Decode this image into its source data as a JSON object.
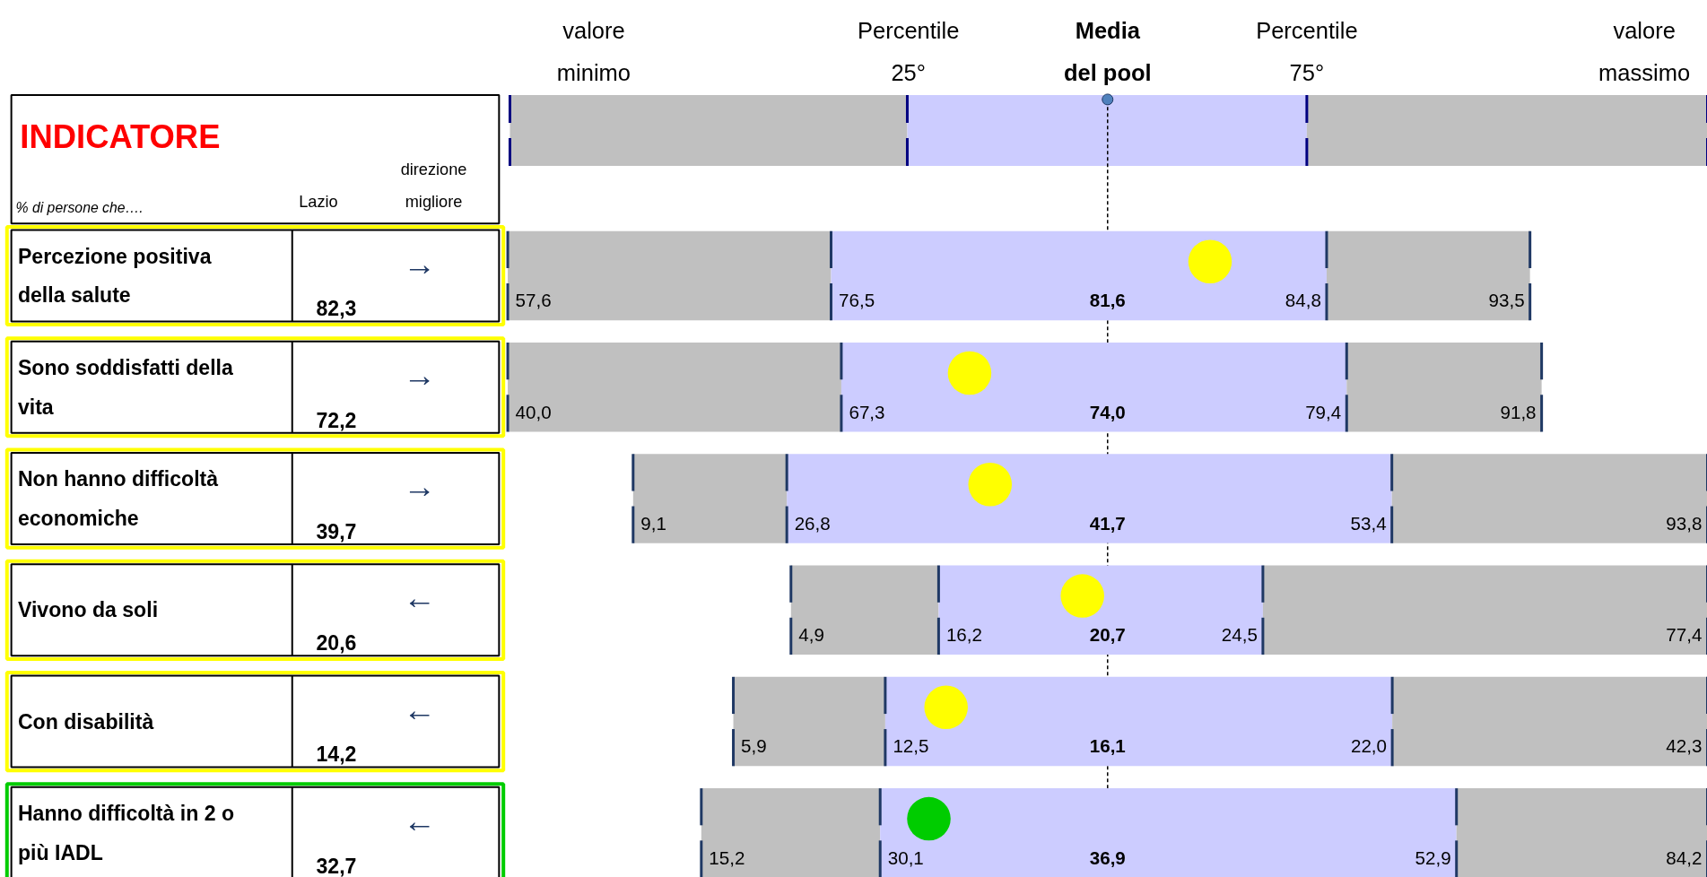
{
  "chart_data": {
    "type": "other",
    "title": "INDICATORE",
    "subtitle": "% di persone che….",
    "categories": [
      "Percezione positiva della salute",
      "Sono soddisfatti della vita",
      "Non hanno difficoltà economiche",
      "Vivono da soli",
      "Con disabilità",
      "Hanno difficoltà in 2 o più IADL"
    ],
    "series": [
      {
        "values": [
          57.6,
          40.0,
          9.1,
          4.9,
          5.9,
          15.2
        ],
        "value_labels": [
          "57,6",
          "40,0",
          "9,1",
          "4,9",
          "5,9",
          "15,2"
        ]
      },
      {
        "values": [
          76.5,
          67.3,
          26.8,
          16.2,
          12.5,
          30.1
        ],
        "value_labels": [
          "76,5",
          "67,3",
          "26,8",
          "16,2",
          "12,5",
          "30,1"
        ]
      },
      {
        "values": [
          81.6,
          74.0,
          41.7,
          20.7,
          16.1,
          36.9
        ],
        "value_labels": [
          "81,6",
          "74,0",
          "41,7",
          "20,7",
          "16,1",
          "36,9"
        ]
      },
      {
        "values": [
          84.8,
          79.4,
          53.4,
          24.5,
          22.0,
          52.9
        ],
        "value_labels": [
          "84,8",
          "79,4",
          "53,4",
          "24,5",
          "22,0",
          "52,9"
        ]
      },
      {
        "values": [
          93.5,
          91.8,
          93.8,
          77.4,
          42.3,
          84.2
        ],
        "value_labels": [
          "93,5",
          "91,8",
          "93,8",
          "77,4",
          "42,3",
          "84,2"
        ]
      },
      {
        "name": "Lazio",
        "type": "scatter",
        "colors": [
          "#ffff00",
          "#ffff00",
          "#ffff00",
          "#ffff00",
          "#ffff00",
          "#00cc00"
        ],
        "values": [
          82.3,
          72.2,
          39.7,
          20.6,
          14.2,
          32.7
        ],
        "value_labels": [
          "82,3",
          "72,2",
          "39,7",
          "20,6",
          "14,2",
          "32,7"
        ]
      }
    ],
    "annotations": [
      "direzione migliore",
      "valore minimo",
      "Percentile 25°",
      "Media del pool",
      "Percentile 75°",
      "valore massimo",
      "→",
      "→",
      "→",
      "←",
      "←",
      "←"
    ]
  }
}
